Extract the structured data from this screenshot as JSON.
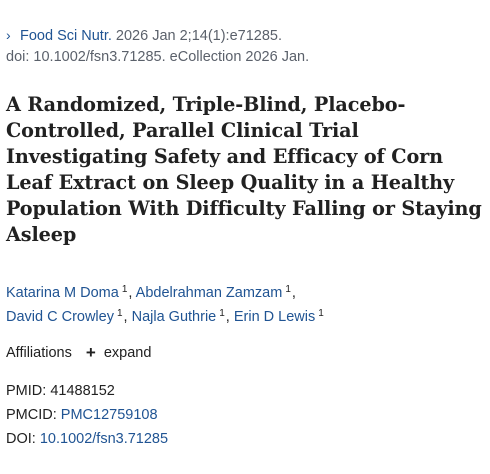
{
  "citation": {
    "journal": "Food Sci Nutr.",
    "details": " 2026 Jan 2;14(1):e71285.",
    "doi_epub": "doi: 10.1002/fsn3.71285. eCollection 2026 Jan."
  },
  "title": "A Randomized, Triple-Blind, Placebo-Controlled, Parallel Clinical Trial Investigating Safety and Efficacy of Corn Leaf Extract on Sleep Quality in a Healthy Population With Difficulty Falling or Staying Asleep",
  "authors": [
    {
      "name": "Katarina M Doma",
      "aff": "1"
    },
    {
      "name": "Abdelrahman Zamzam",
      "aff": "1"
    },
    {
      "name": "David C Crowley",
      "aff": "1"
    },
    {
      "name": "Najla Guthrie",
      "aff": "1"
    },
    {
      "name": "Erin D Lewis",
      "aff": "1"
    }
  ],
  "affiliations": {
    "label": "Affiliations",
    "expand_label": "expand"
  },
  "identifiers": {
    "pmid_label": "PMID:",
    "pmid": "41488152",
    "pmcid_label": "PMCID:",
    "pmcid": "PMC12759108",
    "doi_label": "DOI:",
    "doi": "10.1002/fsn3.71285"
  },
  "icons": {
    "journal_chevron": "chevron-right-icon",
    "expand": "plus-icon"
  },
  "colors": {
    "link": "#205493",
    "text": "#212121",
    "muted": "#5b616b"
  }
}
